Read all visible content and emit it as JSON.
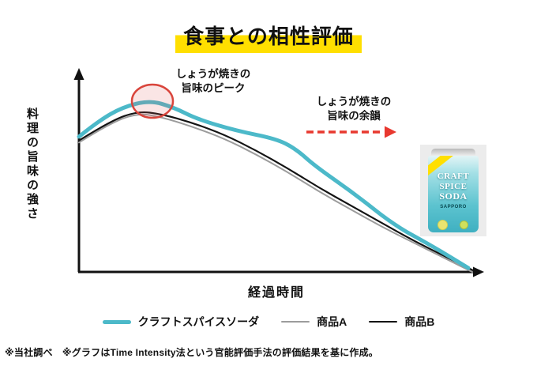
{
  "title": "食事との相性評価",
  "axes": {
    "x_label": "経過時間",
    "y_label": "料理の旨味の強さ"
  },
  "annotations": {
    "peak_line1": "しょうが焼きの",
    "peak_line2": "旨味のピーク",
    "after_line1": "しょうが焼きの",
    "after_line2": "旨味の余韻"
  },
  "chart_data": {
    "type": "line",
    "title": "食事との相性評価",
    "xlabel": "経過時間",
    "ylabel": "料理の旨味の強さ",
    "xlim": [
      0,
      100
    ],
    "ylim": [
      0,
      100
    ],
    "grid": false,
    "legend_position": "bottom",
    "axis_note": "axes are unlabeled arrow axes (qualitative time-intensity curve)",
    "series": [
      {
        "name": "クラフトスパイスソーダ",
        "color": "#4cb9c9",
        "width": 5,
        "z": 3,
        "x": [
          0,
          5,
          11,
          18,
          24,
          30,
          40,
          50,
          55,
          60,
          70,
          80,
          90,
          99
        ],
        "values": [
          69,
          77,
          84,
          87.5,
          84,
          78,
          72,
          68,
          63,
          54,
          40,
          24,
          13,
          2
        ]
      },
      {
        "name": "商品A",
        "color": "#9c9c9c",
        "width": 2,
        "z": 1,
        "x": [
          0,
          8,
          15,
          21,
          29,
          37,
          45,
          53,
          61,
          69,
          77,
          85,
          93,
          100
        ],
        "values": [
          66,
          76,
          81,
          79,
          74,
          68,
          60,
          51,
          41,
          32,
          23,
          15,
          7,
          0
        ]
      },
      {
        "name": "商品B",
        "color": "#141414",
        "width": 2.2,
        "z": 2,
        "x": [
          0,
          8,
          15,
          21,
          29,
          37,
          45,
          53,
          61,
          69,
          77,
          85,
          93,
          100
        ],
        "values": [
          67,
          77,
          82,
          80.5,
          76,
          70,
          62,
          53,
          43,
          34,
          25,
          16,
          8,
          1
        ]
      }
    ],
    "annotations": [
      {
        "type": "circled-peak",
        "text": "しょうが焼きの旨味のピーク",
        "at": {
          "x": 18,
          "y": 87.5
        }
      },
      {
        "type": "dashed-arrow-right",
        "text": "しょうが焼きの旨味の余韻",
        "span_x": [
          58,
          80
        ]
      }
    ]
  },
  "legend": [
    {
      "label": "クラフトスパイスソーダ",
      "color": "#4cb9c9",
      "thick": true
    },
    {
      "label": "商品A",
      "color": "#9c9c9c",
      "thick": false
    },
    {
      "label": "商品B",
      "color": "#141414",
      "thick": false
    }
  ],
  "product": {
    "line1": "CRAFT",
    "line2": "SPICE",
    "line3": "SODA",
    "brand": "SAPPORO"
  },
  "footer": "※当社調べ　※グラフはTime Intensity法という官能評価手法の評価結果を基に作成。",
  "colors": {
    "accent_teal": "#4cb9c9",
    "highlight_yellow": "#ffdf00",
    "annotation_red": "#d9453c",
    "arrow_red": "#e8382f",
    "axis_black": "#111111"
  }
}
